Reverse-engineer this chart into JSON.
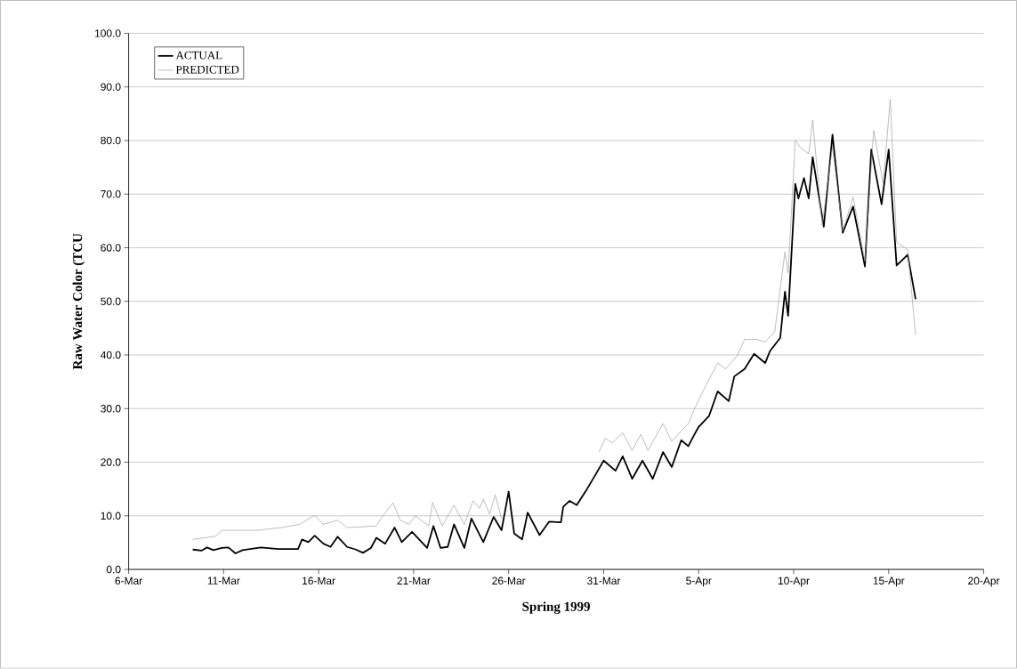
{
  "chart_data": {
    "type": "line",
    "xlabel": "Spring 1999",
    "ylabel": "Raw Water Color (TCU",
    "xlim": [
      "1999-03-06",
      "1999-04-20"
    ],
    "xticks": [
      {
        "value": "1999-03-06",
        "label": "6-Mar"
      },
      {
        "value": "1999-03-11",
        "label": "11-Mar"
      },
      {
        "value": "1999-03-16",
        "label": "16-Mar"
      },
      {
        "value": "1999-03-21",
        "label": "21-Mar"
      },
      {
        "value": "1999-03-26",
        "label": "26-Mar"
      },
      {
        "value": "1999-03-31",
        "label": "31-Mar"
      },
      {
        "value": "1999-04-05",
        "label": "5-Apr"
      },
      {
        "value": "1999-04-10",
        "label": "10-Apr"
      },
      {
        "value": "1999-04-15",
        "label": "15-Apr"
      },
      {
        "value": "1999-04-20",
        "label": "20-Apr"
      }
    ],
    "ylim": [
      0,
      100
    ],
    "yticks": [
      {
        "value": 0,
        "label": "0.0"
      },
      {
        "value": 10,
        "label": "10.0"
      },
      {
        "value": 20,
        "label": "20.0"
      },
      {
        "value": 30,
        "label": "30.0"
      },
      {
        "value": 40,
        "label": "40.0"
      },
      {
        "value": 50,
        "label": "50.0"
      },
      {
        "value": 60,
        "label": "60.0"
      },
      {
        "value": 70,
        "label": "70.0"
      },
      {
        "value": 80,
        "label": "80.0"
      },
      {
        "value": 90,
        "label": "90.0"
      },
      {
        "value": 100,
        "label": "100.0"
      }
    ],
    "grid": "y",
    "legend": "top left",
    "marker": "none",
    "line_style": "solid",
    "series": [
      {
        "name": "ACTUAL",
        "color": "#000000",
        "x": [
          "1999-03-09T09:00",
          "1999-03-09T20:00",
          "1999-03-10T03:00",
          "1999-03-10T11:00",
          "1999-03-10T22:00",
          "1999-03-11T06:00",
          "1999-03-11T15:00",
          "1999-03-12T00:00",
          "1999-03-12T23:00",
          "1999-03-13T21:00",
          "1999-03-14T22:00",
          "1999-03-15T03:00",
          "1999-03-15T11:00",
          "1999-03-15T19:00",
          "1999-03-16T06:00",
          "1999-03-16T15:00",
          "1999-03-17T00:00",
          "1999-03-17T12:00",
          "1999-03-17T23:00",
          "1999-03-18T08:00",
          "1999-03-18T18:00",
          "1999-03-19T01:00",
          "1999-03-19T12:00",
          "1999-03-20T00:00",
          "1999-03-20T09:00",
          "1999-03-20T22:00",
          "1999-03-21T17:00",
          "1999-03-22T01:00",
          "1999-03-22T10:00",
          "1999-03-22T19:00",
          "1999-03-23T03:00",
          "1999-03-23T16:00",
          "1999-03-24T01:00",
          "1999-03-24T16:00",
          "1999-03-25T05:00",
          "1999-03-25T15:00",
          "1999-03-26T00:00",
          "1999-03-26T07:00",
          "1999-03-26T17:00",
          "1999-03-27T00:00",
          "1999-03-27T15:00",
          "1999-03-28T03:00",
          "1999-03-28T18:00",
          "1999-03-28T21:00",
          "1999-03-29T05:00",
          "1999-03-29T14:00",
          "1999-03-30T03:00",
          "1999-03-30T15:00",
          "1999-03-31T00:00",
          "1999-03-31T15:00",
          "1999-04-01T00:00",
          "1999-04-01T12:00",
          "1999-04-02T01:00",
          "1999-04-02T14:00",
          "1999-04-03T03:00",
          "1999-04-03T14:00",
          "1999-04-04T02:00",
          "1999-04-04T11:00",
          "1999-04-04T18:00",
          "1999-04-05T00:00",
          "1999-04-05T13:00",
          "1999-04-06T00:00",
          "1999-04-06T14:00",
          "1999-04-06T21:00",
          "1999-04-07T10:00",
          "1999-04-07T22:00",
          "1999-04-08T12:00",
          "1999-04-08T18:00",
          "1999-04-09T07:00",
          "1999-04-09T13:00",
          "1999-04-09T17:00",
          "1999-04-10T02:00",
          "1999-04-10T06:00",
          "1999-04-10T13:00",
          "1999-04-10T19:00",
          "1999-04-11T00:00",
          "1999-04-11T14:00",
          "1999-04-12T01:00",
          "1999-04-12T14:00",
          "1999-04-13T03:00",
          "1999-04-13T18:00",
          "1999-04-14T02:00",
          "1999-04-14T15:00",
          "1999-04-15T00:00",
          "1999-04-15T10:00",
          "1999-04-16T00:00",
          "1999-04-16T10:00"
        ],
        "values": [
          3.7,
          3.5,
          4.1,
          3.6,
          4.0,
          4.1,
          3.0,
          3.6,
          4.1,
          3.8,
          3.8,
          5.6,
          5.1,
          6.3,
          4.8,
          4.2,
          6.1,
          4.2,
          3.7,
          3.1,
          4.0,
          5.9,
          4.8,
          7.8,
          5.1,
          7.0,
          4.0,
          8.1,
          4.0,
          4.2,
          8.4,
          4.0,
          9.5,
          5.1,
          9.8,
          7.3,
          14.5,
          6.7,
          5.6,
          10.6,
          6.4,
          8.9,
          8.8,
          11.7,
          12.8,
          12.0,
          15.0,
          18.0,
          20.3,
          18.4,
          21.1,
          16.9,
          20.3,
          16.9,
          21.9,
          19.1,
          24.1,
          23.0,
          25.0,
          26.6,
          28.6,
          33.2,
          31.4,
          36.0,
          37.4,
          40.2,
          38.5,
          40.7,
          43.2,
          51.8,
          47.3,
          71.9,
          69.2,
          73.0,
          69.2,
          76.9,
          63.9,
          81.1,
          62.8,
          67.7,
          56.5,
          78.3,
          68.1,
          78.3,
          56.7,
          58.7,
          50.4
        ]
      },
      {
        "name": "PREDICTED",
        "color": "#a0a0a0",
        "x": [
          "1999-03-09T09:00",
          "1999-03-10T14:00",
          "1999-03-10T22:00",
          "1999-03-12T19:00",
          "1999-03-14T01:00",
          "1999-03-15T00:00",
          "1999-03-15T19:00",
          "1999-03-16T06:00",
          "1999-03-17T00:00",
          "1999-03-17T12:00",
          "1999-03-19T01:00",
          "1999-03-19T09:00",
          "1999-03-19T22:00",
          "1999-03-20T07:00",
          "1999-03-20T18:00",
          "1999-03-21T02:00",
          "1999-03-21T19:00",
          "1999-03-22T00:00",
          "1999-03-22T12:00",
          "1999-03-23T03:00",
          "1999-03-23T16:00",
          "1999-03-24T03:00",
          "1999-03-24T11:00",
          "1999-03-24T16:00",
          "1999-03-25T00:00",
          "1999-03-25T07:00",
          "1999-03-25T15:00",
          "1999-03-28T00:00",
          "1999-03-30T18:00",
          "1999-03-31T02:00",
          "1999-03-31T11:00",
          "1999-04-01T00:00",
          "1999-04-01T12:00",
          "1999-04-01T23:00",
          "1999-04-02T08:00",
          "1999-04-03T03:00",
          "1999-04-03T14:00",
          "1999-04-04T11:00",
          "1999-04-04T18:00",
          "1999-04-05T06:00",
          "1999-04-06T00:00",
          "1999-04-06T10:00",
          "1999-04-07T01:00",
          "1999-04-07T10:00",
          "1999-04-08T01:00",
          "1999-04-08T12:00",
          "1999-04-09T00:00",
          "1999-04-09T13:00",
          "1999-04-09T17:00",
          "1999-04-10T02:00",
          "1999-04-10T09:00",
          "1999-04-10T19:00",
          "1999-04-11T00:00",
          "1999-04-11T12:00",
          "1999-04-12T01:00",
          "1999-04-12T14:00",
          "1999-04-13T03:00",
          "1999-04-13T18:00",
          "1999-04-14T05:00",
          "1999-04-14T17:00",
          "1999-04-15T02:00",
          "1999-04-15T10:00",
          "1999-04-16T00:00",
          "1999-04-16T10:00"
        ],
        "values": [
          5.6,
          6.2,
          7.3,
          7.3,
          7.8,
          8.4,
          10.1,
          8.4,
          9.2,
          7.8,
          8.1,
          10.0,
          12.4,
          9.2,
          8.4,
          10.0,
          8.1,
          12.5,
          8.1,
          12.0,
          8.4,
          12.8,
          11.4,
          13.1,
          10.3,
          13.9,
          9.5,
          null,
          21.9,
          24.4,
          23.6,
          25.5,
          22.2,
          25.2,
          22.2,
          27.2,
          23.9,
          27.2,
          29.7,
          33.4,
          38.5,
          37.4,
          39.9,
          42.9,
          42.9,
          42.4,
          44.3,
          59.2,
          55.3,
          80.0,
          78.6,
          77.5,
          83.8,
          64.2,
          78.9,
          63.1,
          69.5,
          57.5,
          81.9,
          72.0,
          87.7,
          61.0,
          59.6,
          43.7
        ]
      }
    ]
  }
}
